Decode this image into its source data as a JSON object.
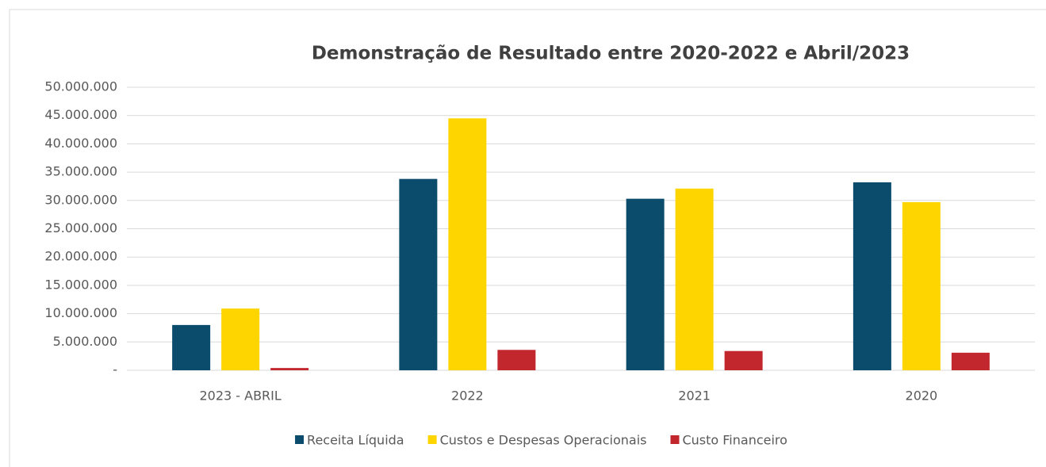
{
  "chart_data": {
    "type": "bar",
    "title": "Demonstração de Resultado entre 2020-2022 e Abril/2023",
    "categories": [
      "2023 - ABRIL",
      "2022",
      "2021",
      "2020"
    ],
    "series": [
      {
        "name": "Receita Líquida",
        "color": "#0b4b6c",
        "values": [
          8000000,
          33800000,
          30300000,
          33200000
        ]
      },
      {
        "name": "Custos e Despesas Operacionais",
        "color": "#ffd500",
        "values": [
          10900000,
          44500000,
          32100000,
          29700000
        ]
      },
      {
        "name": "Custo Financeiro",
        "color": "#c1272d",
        "values": [
          400000,
          3600000,
          3400000,
          3100000
        ]
      }
    ],
    "ylim": [
      0,
      50000000
    ],
    "yticks": [
      {
        "value": 0,
        "label": "-"
      },
      {
        "value": 5000000,
        "label": "5.000.000"
      },
      {
        "value": 10000000,
        "label": "10.000.000"
      },
      {
        "value": 15000000,
        "label": "15.000.000"
      },
      {
        "value": 20000000,
        "label": "20.000.000"
      },
      {
        "value": 25000000,
        "label": "25.000.000"
      },
      {
        "value": 30000000,
        "label": "30.000.000"
      },
      {
        "value": 35000000,
        "label": "35.000.000"
      },
      {
        "value": 40000000,
        "label": "40.000.000"
      },
      {
        "value": 45000000,
        "label": "45.000.000"
      },
      {
        "value": 50000000,
        "label": "50.000.000"
      }
    ],
    "grid": true,
    "legend": "bottom"
  }
}
